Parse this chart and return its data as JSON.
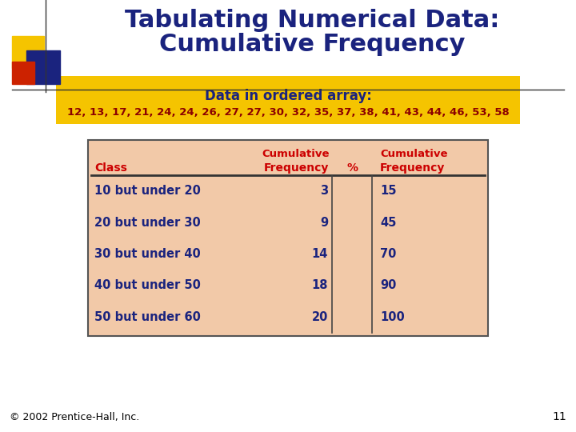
{
  "title_line1": "Tabulating Numerical Data:",
  "title_line2": "Cumulative Frequency",
  "title_color": "#1a237e",
  "title_fontsize": 22,
  "bg_color": "#ffffff",
  "array_box_color": "#f5c400",
  "array_label": "Data in ordered array:",
  "array_label_color": "#1a237e",
  "array_data": "12, 13, 17, 21, 24, 24, 26, 27, 27, 30, 32, 35, 37, 38, 41, 43, 44, 46, 53, 58",
  "array_data_color": "#8b0000",
  "table_bg_color": "#f2c9a8",
  "table_border_color": "#555555",
  "header_color": "#cc0000",
  "data_color": "#1a237e",
  "rows": [
    [
      "10 but under 20",
      "3",
      "15"
    ],
    [
      "20 but under 30",
      "9",
      "45"
    ],
    [
      "30 but under 40",
      "14",
      "70"
    ],
    [
      "40 but under 50",
      "18",
      "90"
    ],
    [
      "50 but under 60",
      "20",
      "100"
    ]
  ],
  "footer_text": "© 2002 Prentice-Hall, Inc.",
  "footer_color": "#000000",
  "page_number": "11",
  "logo_yellow": "#f5c400",
  "logo_red": "#cc2200",
  "logo_blue": "#1a237e"
}
